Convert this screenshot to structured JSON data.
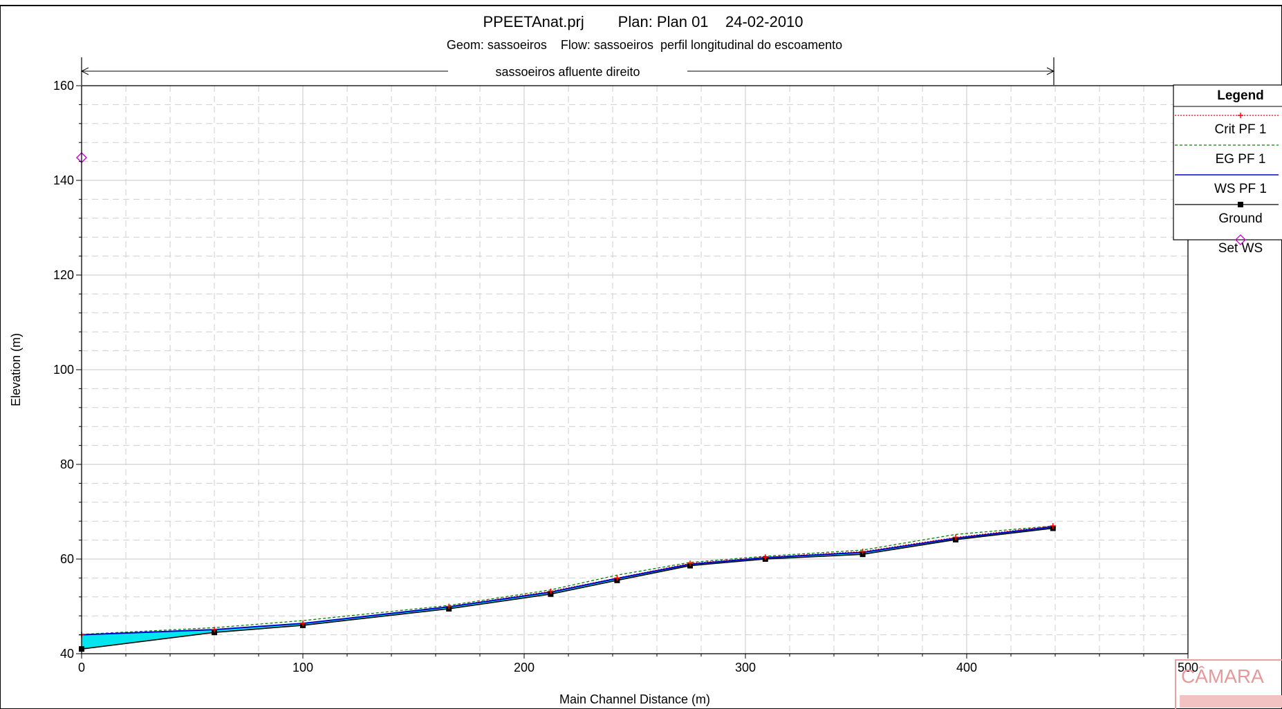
{
  "title": "PPEETAnat.prj        Plan: Plan 01    24-02-2010",
  "subtitle": "Geom: sassoeiros    Flow: sassoeiros  perfil longitudinal do escoamento",
  "reach_label": "sassoeiros afluente direito",
  "stamp_text": "CÂMARA",
  "colors": {
    "water_fill": "#00e5ee",
    "ws": "#0000cc",
    "eg": "#008000",
    "crit": "#ff0000",
    "ground": "#000000",
    "setws": "#cc00cc"
  },
  "legend": {
    "title": "Legend",
    "items": [
      {
        "label": "Crit  PF 1",
        "style": "crit"
      },
      {
        "label": "EG  PF 1",
        "style": "eg"
      },
      {
        "label": "WS  PF 1",
        "style": "ws"
      },
      {
        "label": "Ground",
        "style": "ground"
      },
      {
        "label": "Set WS",
        "style": "setws"
      }
    ]
  },
  "chart_data": {
    "type": "line",
    "xlabel": "Main Channel Distance (m)",
    "ylabel": "Elevation (m)",
    "xlim": [
      0,
      500
    ],
    "ylim": [
      40,
      160
    ],
    "xticks": [
      0,
      100,
      200,
      300,
      400,
      500
    ],
    "yticks": [
      40,
      60,
      80,
      100,
      120,
      140,
      160
    ],
    "grid": true,
    "legend_position": "right",
    "reach_extent": [
      0,
      440
    ],
    "stations": [
      0,
      60,
      100,
      166,
      212,
      242,
      275,
      309,
      353,
      395,
      439
    ],
    "series": [
      {
        "name": "Crit  PF 1",
        "values": [
          44.0,
          45.1,
          46.4,
          50.0,
          53.2,
          56.0,
          59.1,
          60.4,
          61.6,
          64.6,
          67.0
        ]
      },
      {
        "name": "EG  PF 1",
        "values": [
          44.1,
          45.5,
          47.0,
          50.2,
          53.5,
          56.6,
          59.3,
          60.6,
          61.9,
          65.2,
          67.0
        ]
      },
      {
        "name": "WS  PF 1",
        "values": [
          44.0,
          45.1,
          46.4,
          49.9,
          53.0,
          55.9,
          58.9,
          60.3,
          61.4,
          64.4,
          66.8
        ]
      },
      {
        "name": "Ground",
        "values": [
          41.0,
          44.5,
          46.0,
          49.5,
          52.6,
          55.5,
          58.6,
          60.0,
          61.0,
          64.1,
          66.5
        ]
      }
    ],
    "set_ws": {
      "x": 0,
      "y": 144.8
    }
  }
}
